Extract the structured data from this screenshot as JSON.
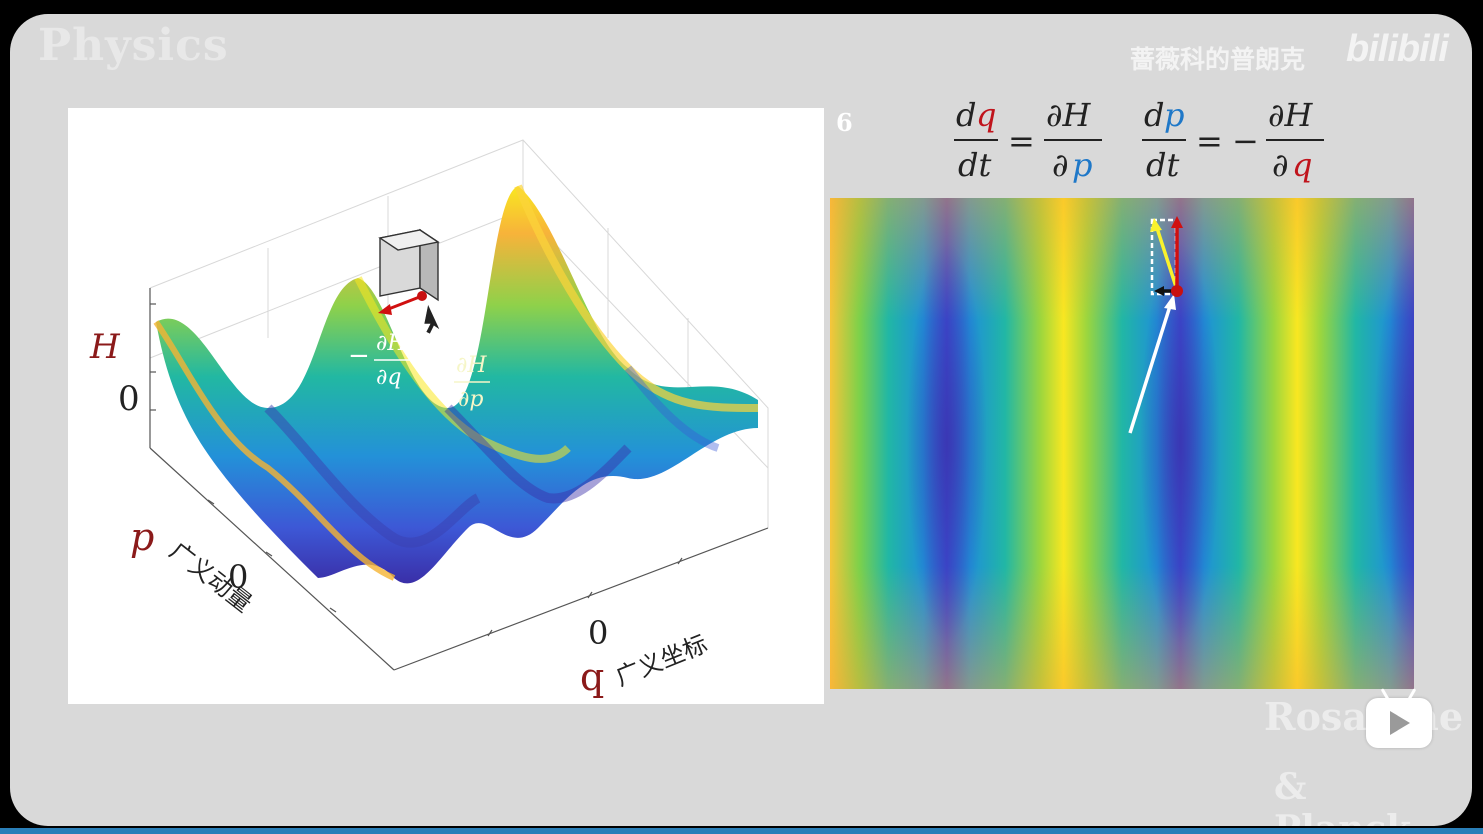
{
  "watermarks": {
    "physics": "Physics",
    "author": "蔷薇科的普朗克",
    "platform": "bilibili",
    "rosa": "Rosaceae",
    "planck": "& Planck"
  },
  "slide_number": "6",
  "plot3d": {
    "h_label": "H",
    "h_zero": "0",
    "p_label": "p",
    "p_caption": "广义动量",
    "p_zero": "0",
    "q_label": "q",
    "q_caption": "广义坐标",
    "q_zero": "0",
    "grad_q_num": "∂H",
    "grad_q_den": "∂q",
    "grad_p_num": "∂H",
    "grad_p_den": "∂p",
    "minus": "−"
  },
  "equations": {
    "eq1_lhs_num_d": "d",
    "eq1_lhs_num_var": "q",
    "eq1_lhs_den": "dt",
    "eq1_rhs_num": "∂H",
    "eq1_rhs_den_d": "∂",
    "eq1_rhs_den_var": "p",
    "eq2_lhs_num_d": "d",
    "eq2_lhs_num_var": "p",
    "eq2_lhs_den": "dt",
    "eq2_rhs_num": "∂H",
    "eq2_rhs_den_d": "∂",
    "eq2_rhs_den_var": "q",
    "equals": "=",
    "minus": "−"
  },
  "colors": {
    "q_red": "#c0141c",
    "p_blue": "#1f78c8",
    "label_red": "#8b1a1a",
    "colormap": [
      "#f9e721",
      "#fca636",
      "#f7b33a",
      "#7dd14a",
      "#21b7a5",
      "#1f90d8",
      "#3b5ad8",
      "#3a2fa8"
    ]
  },
  "icons": {
    "play": "play-icon"
  }
}
